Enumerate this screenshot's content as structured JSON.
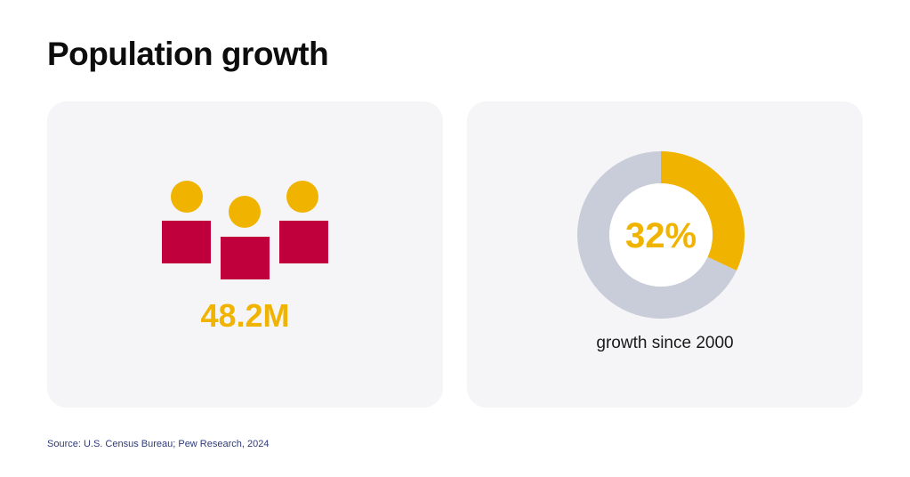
{
  "title": "Population growth",
  "left_card": {
    "value": "48.2M",
    "icon": "people-group-icon"
  },
  "right_card": {
    "caption": "growth since 2000"
  },
  "source": "Source: U.S. Census Bureau; Pew Research, 2024",
  "colors": {
    "accent": "#f0b400",
    "person_body": "#c0003c",
    "donut_track": "#c9ccd9",
    "card_bg": "#f5f5f7"
  },
  "chart_data": {
    "type": "pie",
    "variant": "donut",
    "label": "32%",
    "values": [
      32,
      68
    ],
    "colors": [
      "#f0b400",
      "#c9ccd9"
    ]
  }
}
